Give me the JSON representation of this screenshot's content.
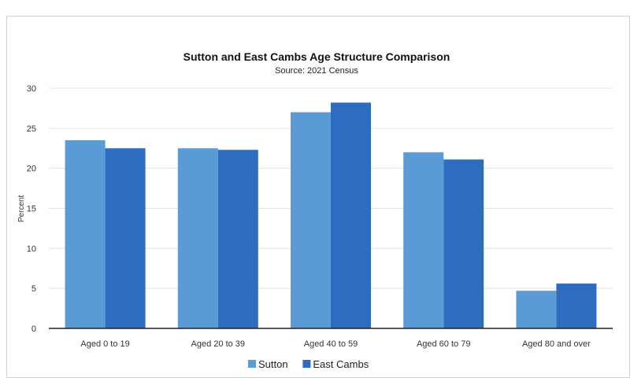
{
  "chart_data": {
    "type": "bar",
    "title": "Sutton and East Cambs Age Structure Comparison",
    "subtitle": "Source: 2021 Census",
    "xlabel": "",
    "ylabel": "Percent",
    "ylim": [
      0,
      30
    ],
    "yticks": [
      0,
      5,
      10,
      15,
      20,
      25,
      30
    ],
    "grid": true,
    "legend_position": "bottom",
    "categories": [
      "Aged 0 to 19",
      "Aged 20 to 39",
      "Aged 40 to 59",
      "Aged 60 to 79",
      "Aged 80 and over"
    ],
    "series": [
      {
        "name": "Sutton",
        "color": "#5b9bd5",
        "values": [
          23.5,
          22.5,
          27.0,
          22.0,
          4.7
        ]
      },
      {
        "name": "East Cambs",
        "color": "#2e6cc0",
        "values": [
          22.5,
          22.3,
          28.2,
          21.1,
          5.6
        ]
      }
    ]
  }
}
